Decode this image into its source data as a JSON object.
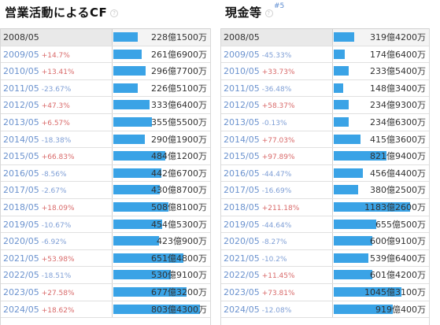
{
  "panels": [
    {
      "id": "left",
      "title": "営業活動によるCF",
      "badge": "",
      "bar_max": 803.43,
      "rows": [
        {
          "year": "2008/05",
          "change": "",
          "dir": "",
          "value": "228億1500万",
          "amount": 228.15
        },
        {
          "year": "2009/05",
          "change": "+14.7%",
          "dir": "up",
          "value": "261億6900万",
          "amount": 261.69
        },
        {
          "year": "2010/05",
          "change": "+13.41%",
          "dir": "up",
          "value": "296億7700万",
          "amount": 296.77
        },
        {
          "year": "2011/05",
          "change": "-23.67%",
          "dir": "down",
          "value": "226億5100万",
          "amount": 226.51
        },
        {
          "year": "2012/05",
          "change": "+47.3%",
          "dir": "up",
          "value": "333億6400万",
          "amount": 333.64
        },
        {
          "year": "2013/05",
          "change": "+6.57%",
          "dir": "up",
          "value": "355億5500万",
          "amount": 355.55
        },
        {
          "year": "2014/05",
          "change": "-18.38%",
          "dir": "down",
          "value": "290億1900万",
          "amount": 290.19
        },
        {
          "year": "2015/05",
          "change": "+66.83%",
          "dir": "up",
          "value": "484億1200万",
          "amount": 484.12
        },
        {
          "year": "2016/05",
          "change": "-8.56%",
          "dir": "down",
          "value": "442億6700万",
          "amount": 442.67
        },
        {
          "year": "2017/05",
          "change": "-2.67%",
          "dir": "down",
          "value": "430億8700万",
          "amount": 430.87
        },
        {
          "year": "2018/05",
          "change": "+18.09%",
          "dir": "up",
          "value": "508億8100万",
          "amount": 508.81
        },
        {
          "year": "2019/05",
          "change": "-10.67%",
          "dir": "down",
          "value": "454億5300万",
          "amount": 454.53
        },
        {
          "year": "2020/05",
          "change": "-6.92%",
          "dir": "down",
          "value": "423億900万",
          "amount": 423.09
        },
        {
          "year": "2021/05",
          "change": "+53.98%",
          "dir": "up",
          "value": "651億4800万",
          "amount": 651.48
        },
        {
          "year": "2022/05",
          "change": "-18.51%",
          "dir": "down",
          "value": "530億9100万",
          "amount": 530.91
        },
        {
          "year": "2023/05",
          "change": "+27.58%",
          "dir": "up",
          "value": "677億3200万",
          "amount": 677.32
        },
        {
          "year": "2024/05",
          "change": "+18.62%",
          "dir": "up",
          "value": "803億4300万",
          "amount": 803.43
        }
      ]
    },
    {
      "id": "right",
      "title": "現金等",
      "badge": "#5",
      "bar_max": 1183.26,
      "rows": [
        {
          "year": "2008/05",
          "change": "",
          "dir": "",
          "value": "319億4200万",
          "amount": 319.42
        },
        {
          "year": "2009/05",
          "change": "-45.33%",
          "dir": "down",
          "value": "174億6400万",
          "amount": 174.64
        },
        {
          "year": "2010/05",
          "change": "+33.73%",
          "dir": "up",
          "value": "233億5400万",
          "amount": 233.54
        },
        {
          "year": "2011/05",
          "change": "-36.48%",
          "dir": "down",
          "value": "148億3400万",
          "amount": 148.34
        },
        {
          "year": "2012/05",
          "change": "+58.37%",
          "dir": "up",
          "value": "234億9300万",
          "amount": 234.93
        },
        {
          "year": "2013/05",
          "change": "-0.13%",
          "dir": "down",
          "value": "234億6300万",
          "amount": 234.63
        },
        {
          "year": "2014/05",
          "change": "+77.03%",
          "dir": "up",
          "value": "415億3600万",
          "amount": 415.36
        },
        {
          "year": "2015/05",
          "change": "+97.89%",
          "dir": "up",
          "value": "821億9400万",
          "amount": 821.94
        },
        {
          "year": "2016/05",
          "change": "-44.47%",
          "dir": "down",
          "value": "456億4400万",
          "amount": 456.44
        },
        {
          "year": "2017/05",
          "change": "-16.69%",
          "dir": "down",
          "value": "380億2500万",
          "amount": 380.25
        },
        {
          "year": "2018/05",
          "change": "+211.18%",
          "dir": "up",
          "value": "1183億2600万",
          "amount": 1183.26
        },
        {
          "year": "2019/05",
          "change": "-44.64%",
          "dir": "down",
          "value": "655億500万",
          "amount": 655.05
        },
        {
          "year": "2020/05",
          "change": "-8.27%",
          "dir": "down",
          "value": "600億9100万",
          "amount": 600.91
        },
        {
          "year": "2021/05",
          "change": "-10.2%",
          "dir": "down",
          "value": "539億6400万",
          "amount": 539.64
        },
        {
          "year": "2022/05",
          "change": "+11.45%",
          "dir": "up",
          "value": "601億4200万",
          "amount": 601.42
        },
        {
          "year": "2023/05",
          "change": "+73.81%",
          "dir": "up",
          "value": "1045億3100万",
          "amount": 1045.31
        },
        {
          "year": "2024/05",
          "change": "-12.08%",
          "dir": "down",
          "value": "919億400万",
          "amount": 919.04
        }
      ]
    }
  ],
  "help_icon_glyph": "?",
  "colors": {
    "bar": "#3aa3e6",
    "up": "#d96a6a",
    "down": "#7f9fd6",
    "year": "#6c93cf"
  },
  "icons": {
    "help": "help-icon"
  }
}
